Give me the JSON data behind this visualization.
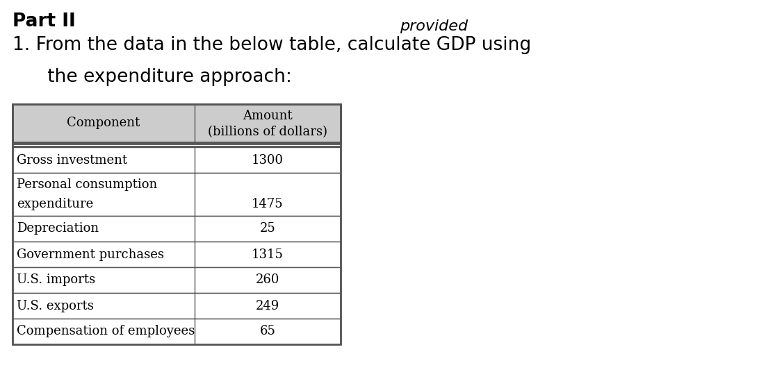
{
  "title_bold": "Part II",
  "subtitle_line1": "1. From the data in the below table, calculate GDP using",
  "subtitle_line2": "      the expenditure approach:",
  "watermark": "provided",
  "col1_header": "Component",
  "col2_header_line1": "Amount",
  "col2_header_line2": "(billions of dollars)",
  "rows": [
    {
      "component": "Gross investment",
      "amount": "1300",
      "two_line": false
    },
    {
      "component": "Personal consumption\nexpenditure",
      "amount": "1475",
      "two_line": true
    },
    {
      "component": "Depreciation",
      "amount": "25",
      "two_line": false
    },
    {
      "component": "Government purchases",
      "amount": "1315",
      "two_line": false
    },
    {
      "component": "U.S. imports",
      "amount": "260",
      "two_line": false
    },
    {
      "component": "U.S. exports",
      "amount": "249",
      "two_line": false
    },
    {
      "component": "Compensation of employees",
      "amount": "65",
      "two_line": false
    }
  ],
  "background_color": "#ffffff",
  "table_border_color": "#555555",
  "header_bg": "#cccccc",
  "font_color": "#000000",
  "title_fontsize": 19,
  "subtitle_fontsize": 19,
  "body_fontsize": 13,
  "header_fontsize": 13
}
